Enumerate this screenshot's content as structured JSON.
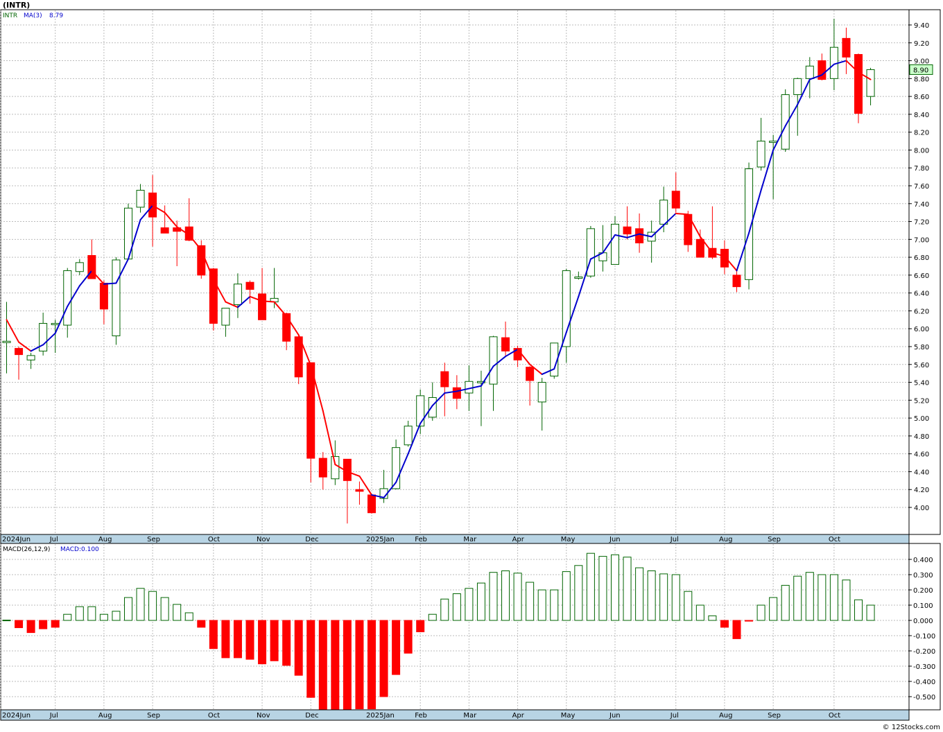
{
  "title": "(INTR)",
  "footer": "© 12Stocks.com",
  "chart_data": [
    {
      "type": "candlestick",
      "legend": {
        "symbol": "INTR",
        "ma_label": "MA(3)",
        "ma_value": "8.79"
      },
      "last_price_label": "8.90",
      "ylim": [
        3.8,
        9.55
      ],
      "y_ticks": [
        "4.00",
        "4.20",
        "4.40",
        "4.60",
        "4.80",
        "5.00",
        "5.20",
        "5.40",
        "5.60",
        "5.80",
        "6.00",
        "6.20",
        "6.40",
        "6.60",
        "6.80",
        "7.00",
        "7.20",
        "7.40",
        "7.60",
        "7.80",
        "8.00",
        "8.20",
        "8.40",
        "8.60",
        "8.80",
        "9.00",
        "9.20",
        "9.40"
      ],
      "x_labels": [
        {
          "label": "2024Jun",
          "index": -0.5
        },
        {
          "label": "Jul",
          "index": 4
        },
        {
          "label": "Aug",
          "index": 8
        },
        {
          "label": "Sep",
          "index": 12
        },
        {
          "label": "Oct",
          "index": 17
        },
        {
          "label": "Nov",
          "index": 21
        },
        {
          "label": "Dec",
          "index": 25
        },
        {
          "label": "2025Jan",
          "index": 30
        },
        {
          "label": "Feb",
          "index": 34
        },
        {
          "label": "Mar",
          "index": 38
        },
        {
          "label": "Apr",
          "index": 42
        },
        {
          "label": "May",
          "index": 46
        },
        {
          "label": "Jun",
          "index": 50
        },
        {
          "label": "Jul",
          "index": 55
        },
        {
          "label": "Aug",
          "index": 59
        },
        {
          "label": "Sep",
          "index": 63
        },
        {
          "label": "Oct",
          "index": 68
        }
      ],
      "ohlc": [
        [
          5.86,
          6.3,
          5.5,
          5.86
        ],
        [
          5.78,
          5.8,
          5.43,
          5.71
        ],
        [
          5.65,
          5.73,
          5.55,
          5.7
        ],
        [
          5.75,
          6.18,
          5.7,
          6.06
        ],
        [
          6.06,
          6.1,
          5.73,
          6.06
        ],
        [
          6.04,
          6.68,
          5.9,
          6.65
        ],
        [
          6.64,
          6.78,
          6.6,
          6.74
        ],
        [
          6.82,
          7.0,
          6.56,
          6.56
        ],
        [
          6.51,
          6.54,
          6.05,
          6.22
        ],
        [
          5.92,
          6.8,
          5.82,
          6.77
        ],
        [
          6.78,
          7.4,
          6.78,
          7.35
        ],
        [
          7.36,
          7.62,
          7.3,
          7.55
        ],
        [
          7.52,
          7.72,
          6.92,
          7.25
        ],
        [
          7.13,
          7.38,
          7.08,
          7.07
        ],
        [
          7.13,
          7.21,
          6.7,
          7.09
        ],
        [
          7.14,
          7.46,
          6.98,
          6.99
        ],
        [
          6.93,
          6.99,
          6.56,
          6.6
        ],
        [
          6.67,
          6.68,
          5.98,
          6.06
        ],
        [
          6.04,
          6.23,
          5.91,
          6.23
        ],
        [
          6.27,
          6.62,
          6.12,
          6.5
        ],
        [
          6.52,
          6.54,
          6.28,
          6.44
        ],
        [
          6.39,
          6.68,
          6.1,
          6.1
        ],
        [
          6.3,
          6.68,
          6.23,
          6.34
        ],
        [
          6.17,
          6.18,
          5.76,
          5.86
        ],
        [
          5.91,
          5.92,
          5.38,
          5.46
        ],
        [
          5.62,
          5.62,
          4.28,
          4.55
        ],
        [
          4.55,
          4.62,
          4.2,
          4.34
        ],
        [
          4.32,
          4.75,
          4.25,
          4.57
        ],
        [
          4.54,
          4.54,
          3.82,
          4.3
        ],
        [
          4.2,
          4.29,
          4.03,
          4.18
        ],
        [
          4.14,
          4.15,
          3.93,
          3.94
        ],
        [
          4.1,
          4.42,
          4.05,
          4.21
        ],
        [
          4.21,
          4.76,
          4.2,
          4.67
        ],
        [
          4.7,
          4.97,
          4.68,
          4.91
        ],
        [
          4.91,
          5.32,
          4.82,
          5.25
        ],
        [
          5.01,
          5.4,
          4.97,
          5.23
        ],
        [
          5.52,
          5.62,
          5.02,
          5.35
        ],
        [
          5.34,
          5.48,
          5.1,
          5.22
        ],
        [
          5.28,
          5.59,
          5.08,
          5.41
        ],
        [
          5.41,
          5.53,
          4.91,
          5.41
        ],
        [
          5.38,
          5.92,
          5.08,
          5.91
        ],
        [
          5.9,
          6.08,
          5.7,
          5.75
        ],
        [
          5.78,
          5.81,
          5.57,
          5.65
        ],
        [
          5.57,
          5.58,
          5.14,
          5.42
        ],
        [
          5.18,
          5.45,
          4.86,
          5.4
        ],
        [
          5.47,
          5.82,
          5.44,
          5.84
        ],
        [
          5.8,
          6.67,
          5.62,
          6.65
        ],
        [
          6.58,
          6.64,
          6.55,
          6.58
        ],
        [
          6.59,
          7.15,
          6.57,
          7.12
        ],
        [
          6.76,
          7.16,
          6.64,
          6.85
        ],
        [
          6.72,
          7.26,
          6.72,
          7.17
        ],
        [
          7.14,
          7.37,
          7.0,
          7.06
        ],
        [
          7.12,
          7.29,
          6.85,
          6.96
        ],
        [
          6.98,
          7.21,
          6.74,
          7.08
        ],
        [
          7.17,
          7.59,
          7.08,
          7.44
        ],
        [
          7.54,
          7.75,
          7.3,
          7.35
        ],
        [
          7.28,
          7.32,
          6.86,
          6.94
        ],
        [
          7.0,
          7.11,
          6.83,
          6.8
        ],
        [
          6.9,
          7.37,
          6.78,
          6.8
        ],
        [
          6.89,
          6.99,
          6.61,
          6.69
        ],
        [
          6.6,
          6.65,
          6.41,
          6.47
        ],
        [
          6.55,
          7.86,
          6.44,
          7.79
        ],
        [
          7.81,
          8.36,
          7.77,
          8.1
        ],
        [
          8.1,
          8.17,
          7.45,
          8.1
        ],
        [
          8.01,
          8.68,
          7.98,
          8.62
        ],
        [
          8.62,
          8.81,
          8.16,
          8.8
        ],
        [
          8.8,
          9.04,
          8.58,
          8.94
        ],
        [
          9.0,
          9.08,
          8.78,
          8.79
        ],
        [
          8.8,
          9.47,
          8.67,
          9.15
        ],
        [
          9.25,
          9.37,
          8.85,
          9.04
        ],
        [
          9.07,
          9.08,
          8.3,
          8.41
        ],
        [
          8.6,
          8.92,
          8.5,
          8.9
        ]
      ],
      "ma3": [
        6.1,
        5.85,
        5.75,
        5.82,
        5.95,
        6.25,
        6.48,
        6.65,
        6.5,
        6.51,
        6.78,
        7.22,
        7.38,
        7.3,
        7.14,
        7.05,
        6.88,
        6.55,
        6.3,
        6.24,
        6.36,
        6.31,
        6.3,
        6.14,
        5.93,
        5.59,
        5.08,
        4.48,
        4.4,
        4.35,
        4.14,
        4.11,
        4.28,
        4.6,
        4.94,
        5.14,
        5.28,
        5.3,
        5.33,
        5.36,
        5.58,
        5.69,
        5.77,
        5.6,
        5.49,
        5.55,
        5.96,
        6.36,
        6.78,
        6.85,
        7.05,
        7.02,
        7.06,
        7.03,
        7.16,
        7.29,
        7.28,
        7.03,
        6.85,
        6.81,
        6.65,
        7.07,
        7.55,
        8.0,
        8.27,
        8.51,
        8.79,
        8.84,
        8.96,
        9.0,
        8.87,
        8.79
      ],
      "ma3_colors": [
        "r",
        "r",
        "r",
        "b",
        "b",
        "b",
        "b",
        "b",
        "r",
        "b",
        "b",
        "b",
        "b",
        "r",
        "r",
        "r",
        "r",
        "r",
        "r",
        "r",
        "b",
        "r",
        "r",
        "r",
        "r",
        "r",
        "r",
        "r",
        "r",
        "r",
        "r",
        "b",
        "b",
        "b",
        "b",
        "b",
        "b",
        "b",
        "b",
        "b",
        "b",
        "b",
        "b",
        "r",
        "r",
        "b",
        "b",
        "b",
        "b",
        "b",
        "b",
        "b",
        "b",
        "b",
        "b",
        "b",
        "r",
        "r",
        "r",
        "r",
        "r",
        "b",
        "b",
        "b",
        "b",
        "b",
        "b",
        "b",
        "b",
        "b",
        "r",
        "r"
      ]
    },
    {
      "type": "bar",
      "legend": {
        "label": "MACD(26,12,9)",
        "value_label": "MACD:0.100"
      },
      "ylim": [
        -0.6,
        0.46
      ],
      "y_ticks": [
        "-0.500",
        "-0.400",
        "-0.300",
        "-0.200",
        "-0.100",
        "0.000",
        "0.100",
        "0.200",
        "0.300",
        "0.400"
      ],
      "values": [
        0.002,
        -0.048,
        -0.08,
        -0.055,
        -0.045,
        0.04,
        0.09,
        0.09,
        0.04,
        0.06,
        0.15,
        0.21,
        0.19,
        0.15,
        0.105,
        0.05,
        -0.045,
        -0.185,
        -0.245,
        -0.245,
        -0.255,
        -0.285,
        -0.265,
        -0.295,
        -0.36,
        -0.505,
        -0.59,
        -0.62,
        -0.64,
        -0.58,
        -0.58,
        -0.5,
        -0.355,
        -0.215,
        -0.075,
        0.04,
        0.14,
        0.175,
        0.21,
        0.245,
        0.315,
        0.325,
        0.31,
        0.25,
        0.2,
        0.2,
        0.32,
        0.36,
        0.44,
        0.42,
        0.43,
        0.415,
        0.345,
        0.325,
        0.305,
        0.3,
        0.19,
        0.1,
        0.03,
        -0.045,
        -0.12,
        -0.005,
        0.1,
        0.15,
        0.23,
        0.29,
        0.315,
        0.3,
        0.3,
        0.265,
        0.135,
        0.1
      ],
      "colors": [
        "g",
        "r",
        "r",
        "r",
        "r",
        "g",
        "g",
        "g",
        "g",
        "g",
        "g",
        "g",
        "g",
        "g",
        "g",
        "g",
        "r",
        "r",
        "r",
        "r",
        "r",
        "r",
        "r",
        "r",
        "r",
        "r",
        "r",
        "r",
        "r",
        "r",
        "r",
        "r",
        "r",
        "r",
        "r",
        "g",
        "g",
        "g",
        "g",
        "g",
        "g",
        "g",
        "g",
        "g",
        "g",
        "g",
        "g",
        "g",
        "g",
        "g",
        "g",
        "g",
        "g",
        "g",
        "g",
        "g",
        "g",
        "g",
        "g",
        "r",
        "r",
        "r",
        "g",
        "g",
        "g",
        "g",
        "g",
        "g",
        "g",
        "g",
        "g",
        "g"
      ]
    }
  ],
  "colors": {
    "up": "#006400",
    "down": "#ff0000",
    "ma_up": "#0000cc",
    "ma_down": "#ff0000",
    "grid": "#bbbbbb",
    "axis_bg": "#ffffff",
    "band": "#b8d4e4",
    "label_box": "#ccffcc"
  }
}
